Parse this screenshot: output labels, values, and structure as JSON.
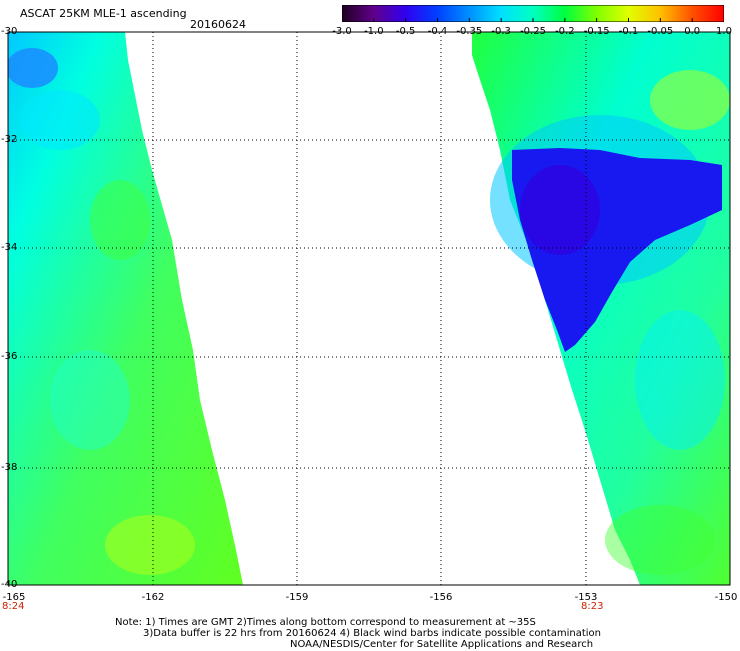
{
  "title": "ASCAT 25KM MLE-1 ascending",
  "date": "20160624",
  "colorbar": {
    "labels": [
      "-3.0",
      "-1.0",
      "-0.5",
      "-0.4",
      "-0.35",
      "-0.3",
      "-0.25",
      "-0.2",
      "-0.15",
      "-0.1",
      "-0.05",
      "0.0",
      "1.0"
    ],
    "colors": [
      "#200020",
      "#60008c",
      "#3000f0",
      "#0040ff",
      "#0090ff",
      "#00e0ff",
      "#00ffc0",
      "#00ff40",
      "#80ff00",
      "#e0ff00",
      "#ffc000",
      "#ff5000",
      "#ff0000"
    ]
  },
  "latitude_labels": [
    "-30",
    "-32",
    "-34",
    "-36",
    "-38",
    "-40"
  ],
  "longitude_labels": [
    "-165",
    "-162",
    "-159",
    "-156",
    "-153",
    "-150"
  ],
  "pass_times": [
    {
      "lon": "-165",
      "time": "8:24"
    },
    {
      "lon": "-153",
      "time": "8:23"
    }
  ],
  "notes": [
    "Note: 1) Times are GMT 2)Times along bottom correspond to measurement at ~35S",
    "3)Data buffer is 22 hrs from 20160624 4) Black wind barbs indicate possible contamination",
    "NOAA/NESDIS/Center for Satellite Applications and Research"
  ],
  "map_extent": {
    "lon_min": -165,
    "lon_max": -150,
    "lat_min": -40,
    "lat_max": -30
  }
}
